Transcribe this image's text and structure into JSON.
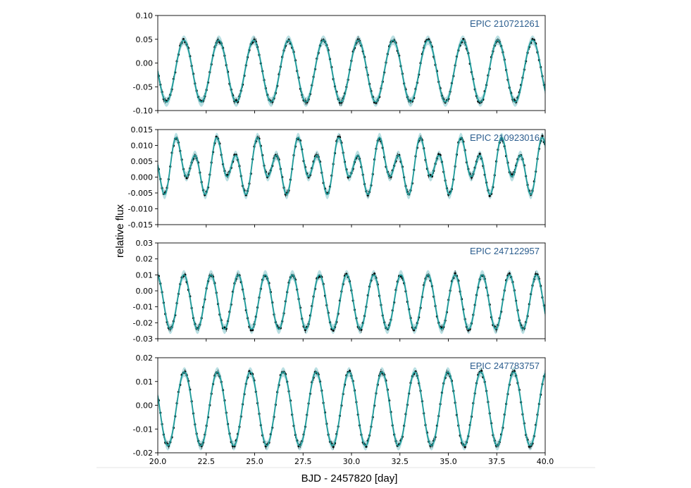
{
  "chart_data": {
    "type": "line",
    "xlabel": "BJD - 2457820 [day]",
    "ylabel": "relative flux",
    "xlim": [
      20.0,
      40.0
    ],
    "x_ticks": [
      "20.0",
      "22.5",
      "25.0",
      "27.5",
      "30.0",
      "32.5",
      "35.0",
      "37.5",
      "40.0"
    ],
    "colors": {
      "model": "#1f9a99",
      "band": "#b9dfe2",
      "data": "#000000",
      "label": "#2b5d8e"
    },
    "panels": [
      {
        "label": "EPIC 210721261",
        "ylim": [
          -0.1,
          0.1
        ],
        "y_ticks": [
          "0.10",
          "0.05",
          "0.00",
          "-0.05",
          "-0.10"
        ],
        "y_tick_values": [
          0.1,
          0.05,
          0.0,
          -0.05,
          -0.1
        ],
        "period": 1.8,
        "amplitude": 0.065,
        "mean": -0.017,
        "phase": 20.9,
        "extra_amp": 0.0,
        "extra_period": 1.0
      },
      {
        "label": "EPIC 210923016",
        "ylim": [
          -0.015,
          0.015
        ],
        "y_ticks": [
          "0.015",
          "0.010",
          "0.005",
          "0.000",
          "-0.005",
          "-0.010",
          "-0.015"
        ],
        "y_tick_values": [
          0.015,
          0.01,
          0.005,
          0.0,
          -0.005,
          -0.01,
          -0.015
        ],
        "period": 1.05,
        "amplitude": 0.006,
        "mean": 0.0035,
        "phase": 20.65,
        "extra_amp": 0.004,
        "extra_period": 2.1
      },
      {
        "label": "EPIC 247122957",
        "ylim": [
          -0.03,
          0.03
        ],
        "y_ticks": [
          "0.03",
          "0.02",
          "0.01",
          "0.00",
          "-0.01",
          "-0.02",
          "-0.03"
        ],
        "y_tick_values": [
          0.03,
          0.02,
          0.01,
          0.0,
          -0.01,
          -0.02,
          -0.03
        ],
        "period": 1.4,
        "amplitude": 0.017,
        "mean": -0.007,
        "phase": 21.0,
        "extra_amp": 0.0,
        "extra_period": 1.0
      },
      {
        "label": "EPIC 247783757",
        "ylim": [
          -0.02,
          0.02
        ],
        "y_ticks": [
          "0.02",
          "0.01",
          "0.00",
          "-0.01",
          "-0.02"
        ],
        "y_tick_values": [
          0.02,
          0.01,
          0.0,
          -0.01,
          -0.02
        ],
        "period": 1.7,
        "amplitude": 0.0155,
        "mean": -0.0015,
        "phase": 20.95,
        "extra_amp": 0.0,
        "extra_period": 1.0
      }
    ]
  }
}
